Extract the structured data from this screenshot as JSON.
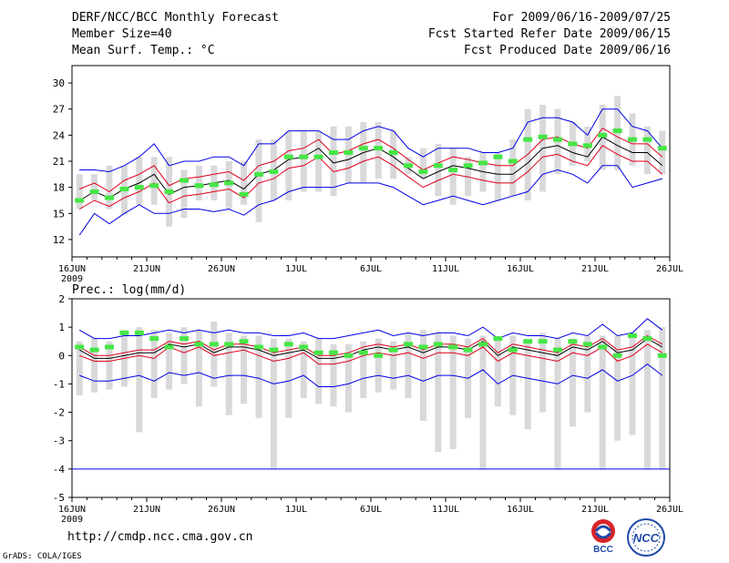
{
  "header": {
    "title": "DERF/NCC/BCC Monthly Forecast",
    "member_size": "Member Size=40",
    "variable": "Mean Surf. Temp.: °C",
    "period": "For 2009/06/16-2009/07/25",
    "started": "Fcst Started Refer Date 2009/06/15",
    "produced": "Fcst Produced Date 2009/06/16"
  },
  "footer": {
    "url": "http://cmdp.ncc.cma.gov.cn",
    "credit": "GrADS: COLA/IGES",
    "logo_bcc": "BCC",
    "logo_ncc": "NCC"
  },
  "colors": {
    "frame": "#000000",
    "box": "#d9d9db",
    "clim": "#46e646",
    "mean": "#000000",
    "inner": "#e0001a",
    "outer": "#0000e6"
  },
  "chart_data": [
    {
      "type": "line",
      "title": "Mean Surf. Temp.: °C",
      "days": 40,
      "x_ticks": [
        "16JUN",
        "21JUN",
        "26JUN",
        "1JUL",
        "6JUL",
        "11JUL",
        "16JUL",
        "21JUL",
        "26JUL"
      ],
      "x_year": "2009",
      "ylim": [
        10,
        32
      ],
      "y_ticks": [
        12,
        15,
        18,
        21,
        24,
        27,
        30
      ],
      "box_low": [
        15.5,
        16.5,
        15.5,
        14.8,
        16.0,
        16.0,
        13.5,
        14.5,
        16.5,
        16.5,
        15.5,
        16.0,
        14.0,
        16.5,
        16.5,
        17.5,
        17.5,
        17.0,
        18.5,
        18.5,
        19.0,
        19.0,
        19.5,
        19.0,
        17.0,
        16.0,
        17.0,
        17.5,
        16.5,
        17.0,
        16.5,
        17.5,
        19.5,
        20.5,
        21.0,
        20.0,
        20.0,
        20.5,
        19.5,
        19.5
      ],
      "box_high": [
        19.5,
        19.5,
        20.5,
        20.5,
        21.5,
        21.5,
        21.5,
        20.0,
        20.5,
        20.5,
        21.0,
        21.0,
        23.5,
        23.5,
        24.5,
        24.5,
        24.5,
        25.0,
        25.0,
        25.5,
        25.5,
        24.5,
        21.5,
        22.5,
        23.0,
        22.5,
        21.5,
        22.0,
        22.0,
        23.5,
        27.0,
        27.5,
        27.0,
        25.5,
        25.0,
        27.5,
        28.5,
        26.5,
        25.0,
        24.5
      ],
      "climatology": [
        16.5,
        17.5,
        16.8,
        17.8,
        18.0,
        18.2,
        17.5,
        18.8,
        18.2,
        18.3,
        18.5,
        17.2,
        19.5,
        19.8,
        21.5,
        21.5,
        21.5,
        22.0,
        22.0,
        22.5,
        22.5,
        22.0,
        20.5,
        19.8,
        20.5,
        20.0,
        20.5,
        20.8,
        21.5,
        21.0,
        23.5,
        23.8,
        23.5,
        23.0,
        22.8,
        24.0,
        24.5,
        23.5,
        23.5,
        22.5
      ],
      "series": [
        {
          "name": "Ensemble mean",
          "values": [
            16.5,
            17.5,
            16.8,
            17.8,
            18.5,
            19.5,
            17.2,
            18.0,
            18.2,
            18.5,
            18.8,
            17.8,
            19.5,
            20.0,
            21.2,
            21.5,
            22.5,
            20.8,
            21.2,
            22.0,
            22.5,
            21.5,
            20.2,
            19.0,
            19.8,
            20.5,
            20.2,
            19.8,
            19.5,
            19.5,
            20.8,
            22.5,
            22.8,
            22.0,
            21.5,
            23.8,
            22.8,
            22.0,
            22.0,
            20.5
          ]
        },
        {
          "name": "Upper inner band",
          "values": [
            17.8,
            18.5,
            17.5,
            18.8,
            19.5,
            20.5,
            18.2,
            19.0,
            19.2,
            19.5,
            19.8,
            18.8,
            20.5,
            21.0,
            22.2,
            22.5,
            23.5,
            21.8,
            22.2,
            23.0,
            23.5,
            22.5,
            21.2,
            20.0,
            20.8,
            21.5,
            21.2,
            20.8,
            20.5,
            20.5,
            21.8,
            23.5,
            23.8,
            23.0,
            22.5,
            24.8,
            23.8,
            23.0,
            23.0,
            21.5
          ]
        },
        {
          "name": "Lower inner band",
          "values": [
            15.5,
            16.5,
            15.8,
            16.8,
            17.5,
            18.5,
            16.2,
            17.0,
            17.2,
            17.5,
            17.8,
            16.8,
            18.5,
            19.0,
            20.2,
            20.5,
            21.5,
            19.8,
            20.2,
            21.0,
            21.5,
            20.5,
            19.2,
            18.0,
            18.8,
            19.5,
            19.2,
            18.8,
            18.5,
            18.5,
            19.8,
            21.5,
            21.8,
            21.0,
            20.5,
            22.8,
            21.8,
            21.0,
            21.0,
            19.5
          ]
        },
        {
          "name": "Upper outer band",
          "values": [
            20.0,
            20.0,
            19.8,
            20.5,
            21.5,
            23.0,
            20.5,
            21.0,
            21.0,
            21.5,
            21.5,
            20.5,
            23.0,
            23.0,
            24.5,
            24.5,
            24.5,
            23.5,
            23.5,
            24.5,
            25.0,
            24.5,
            22.5,
            21.5,
            22.5,
            22.5,
            22.5,
            22.0,
            22.0,
            22.5,
            25.5,
            26.0,
            26.0,
            25.5,
            24.0,
            27.0,
            27.0,
            25.0,
            24.5,
            22.5
          ]
        },
        {
          "name": "Lower outer band",
          "values": [
            12.5,
            15.0,
            13.8,
            15.0,
            16.0,
            15.0,
            15.0,
            15.5,
            15.5,
            15.2,
            15.5,
            14.8,
            16.0,
            16.5,
            17.5,
            18.0,
            18.0,
            18.0,
            18.5,
            18.5,
            18.5,
            18.0,
            17.0,
            16.0,
            16.5,
            17.0,
            16.5,
            16.0,
            16.5,
            17.0,
            17.5,
            19.5,
            20.0,
            19.5,
            18.5,
            20.5,
            20.5,
            18.0,
            18.5,
            19.0
          ]
        }
      ]
    },
    {
      "type": "line",
      "title": "Prec.: log(mm/d)",
      "days": 40,
      "x_ticks": [
        "16JUN",
        "21JUN",
        "26JUN",
        "1JUL",
        "6JUL",
        "11JUL",
        "16JUL",
        "21JUL",
        "26JUL"
      ],
      "x_year": "2009",
      "ylim": [
        -5,
        2
      ],
      "y_ticks": [
        -5,
        -4,
        -3,
        -2,
        -1,
        0,
        1,
        2
      ],
      "box_low": [
        -1.4,
        -1.3,
        -1.2,
        -1.1,
        -2.7,
        -1.5,
        -1.2,
        -1.0,
        -1.8,
        -1.1,
        -2.1,
        -1.7,
        -2.2,
        -4.0,
        -2.2,
        -1.5,
        -1.7,
        -1.8,
        -2.0,
        -1.5,
        -1.3,
        -1.2,
        -1.5,
        -2.3,
        -3.4,
        -3.3,
        -2.2,
        -4.0,
        -1.8,
        -2.1,
        -2.6,
        -2.0,
        -4.0,
        -2.5,
        -2.0,
        -4.0,
        -3.0,
        -2.8,
        -4.0,
        -4.0
      ],
      "box_high": [
        0.5,
        0.6,
        0.5,
        0.9,
        1.0,
        0.9,
        0.8,
        1.0,
        0.9,
        1.2,
        0.8,
        0.7,
        0.7,
        0.6,
        0.6,
        0.5,
        0.6,
        0.4,
        0.4,
        0.5,
        0.6,
        0.5,
        0.8,
        0.9,
        0.8,
        0.7,
        0.6,
        0.7,
        0.6,
        0.7,
        0.5,
        0.8,
        0.6,
        0.6,
        0.7,
        0.7,
        0.7,
        0.8,
        0.9,
        1.0
      ],
      "climatology": [
        0.3,
        0.2,
        0.3,
        0.8,
        0.8,
        0.6,
        0.3,
        0.6,
        0.4,
        0.4,
        0.4,
        0.5,
        0.3,
        0.2,
        0.4,
        0.3,
        0.1,
        0.1,
        0.0,
        0.1,
        0.0,
        0.2,
        0.4,
        0.3,
        0.4,
        0.3,
        0.2,
        0.4,
        0.6,
        0.2,
        0.5,
        0.5,
        0.2,
        0.5,
        0.4,
        0.3,
        0.0,
        0.7,
        0.6,
        0.0
      ],
      "series": [
        {
          "name": "Ensemble mean",
          "values": [
            0.2,
            -0.1,
            -0.1,
            0.0,
            0.1,
            0.1,
            0.4,
            0.3,
            0.4,
            0.1,
            0.3,
            0.3,
            0.2,
            0.0,
            0.1,
            0.2,
            -0.1,
            -0.1,
            0.0,
            0.2,
            0.3,
            0.2,
            0.3,
            0.1,
            0.3,
            0.3,
            0.2,
            0.5,
            0.0,
            0.3,
            0.2,
            0.1,
            0.0,
            0.3,
            0.2,
            0.5,
            0.1,
            0.2,
            0.6,
            0.3
          ]
        },
        {
          "name": "Upper inner band",
          "values": [
            0.3,
            0.0,
            0.0,
            0.1,
            0.2,
            0.2,
            0.5,
            0.4,
            0.5,
            0.2,
            0.4,
            0.4,
            0.3,
            0.1,
            0.2,
            0.3,
            0.0,
            0.0,
            0.1,
            0.3,
            0.4,
            0.3,
            0.4,
            0.2,
            0.4,
            0.4,
            0.3,
            0.6,
            0.1,
            0.4,
            0.3,
            0.2,
            0.1,
            0.4,
            0.3,
            0.6,
            0.2,
            0.3,
            0.7,
            0.4
          ]
        },
        {
          "name": "Lower inner band",
          "values": [
            0.0,
            -0.2,
            -0.2,
            -0.1,
            0.0,
            -0.1,
            0.3,
            0.1,
            0.3,
            0.0,
            0.1,
            0.2,
            0.0,
            -0.2,
            -0.1,
            0.1,
            -0.3,
            -0.3,
            -0.2,
            0.0,
            0.1,
            0.0,
            0.1,
            -0.1,
            0.1,
            0.1,
            0.0,
            0.3,
            -0.2,
            0.1,
            0.0,
            -0.1,
            -0.2,
            0.1,
            0.0,
            0.3,
            -0.2,
            0.0,
            0.4,
            0.1
          ]
        },
        {
          "name": "Upper outer band",
          "values": [
            0.9,
            0.6,
            0.6,
            0.7,
            0.7,
            0.8,
            0.9,
            0.8,
            0.9,
            0.8,
            0.9,
            0.8,
            0.8,
            0.7,
            0.7,
            0.8,
            0.6,
            0.6,
            0.7,
            0.8,
            0.9,
            0.7,
            0.8,
            0.7,
            0.8,
            0.8,
            0.7,
            1.0,
            0.6,
            0.8,
            0.7,
            0.7,
            0.6,
            0.8,
            0.7,
            1.1,
            0.7,
            0.8,
            1.3,
            0.9
          ]
        },
        {
          "name": "Lower outer band",
          "values": [
            -0.7,
            -0.9,
            -0.9,
            -0.8,
            -0.7,
            -0.9,
            -0.6,
            -0.7,
            -0.6,
            -0.8,
            -0.7,
            -0.7,
            -0.8,
            -1.0,
            -0.9,
            -0.7,
            -1.1,
            -1.1,
            -1.0,
            -0.8,
            -0.7,
            -0.8,
            -0.7,
            -0.9,
            -0.7,
            -0.7,
            -0.8,
            -0.5,
            -1.0,
            -0.7,
            -0.8,
            -0.9,
            -1.0,
            -0.7,
            -0.8,
            -0.5,
            -0.9,
            -0.7,
            -0.3,
            -0.7
          ]
        }
      ],
      "reference_line": -4
    }
  ]
}
